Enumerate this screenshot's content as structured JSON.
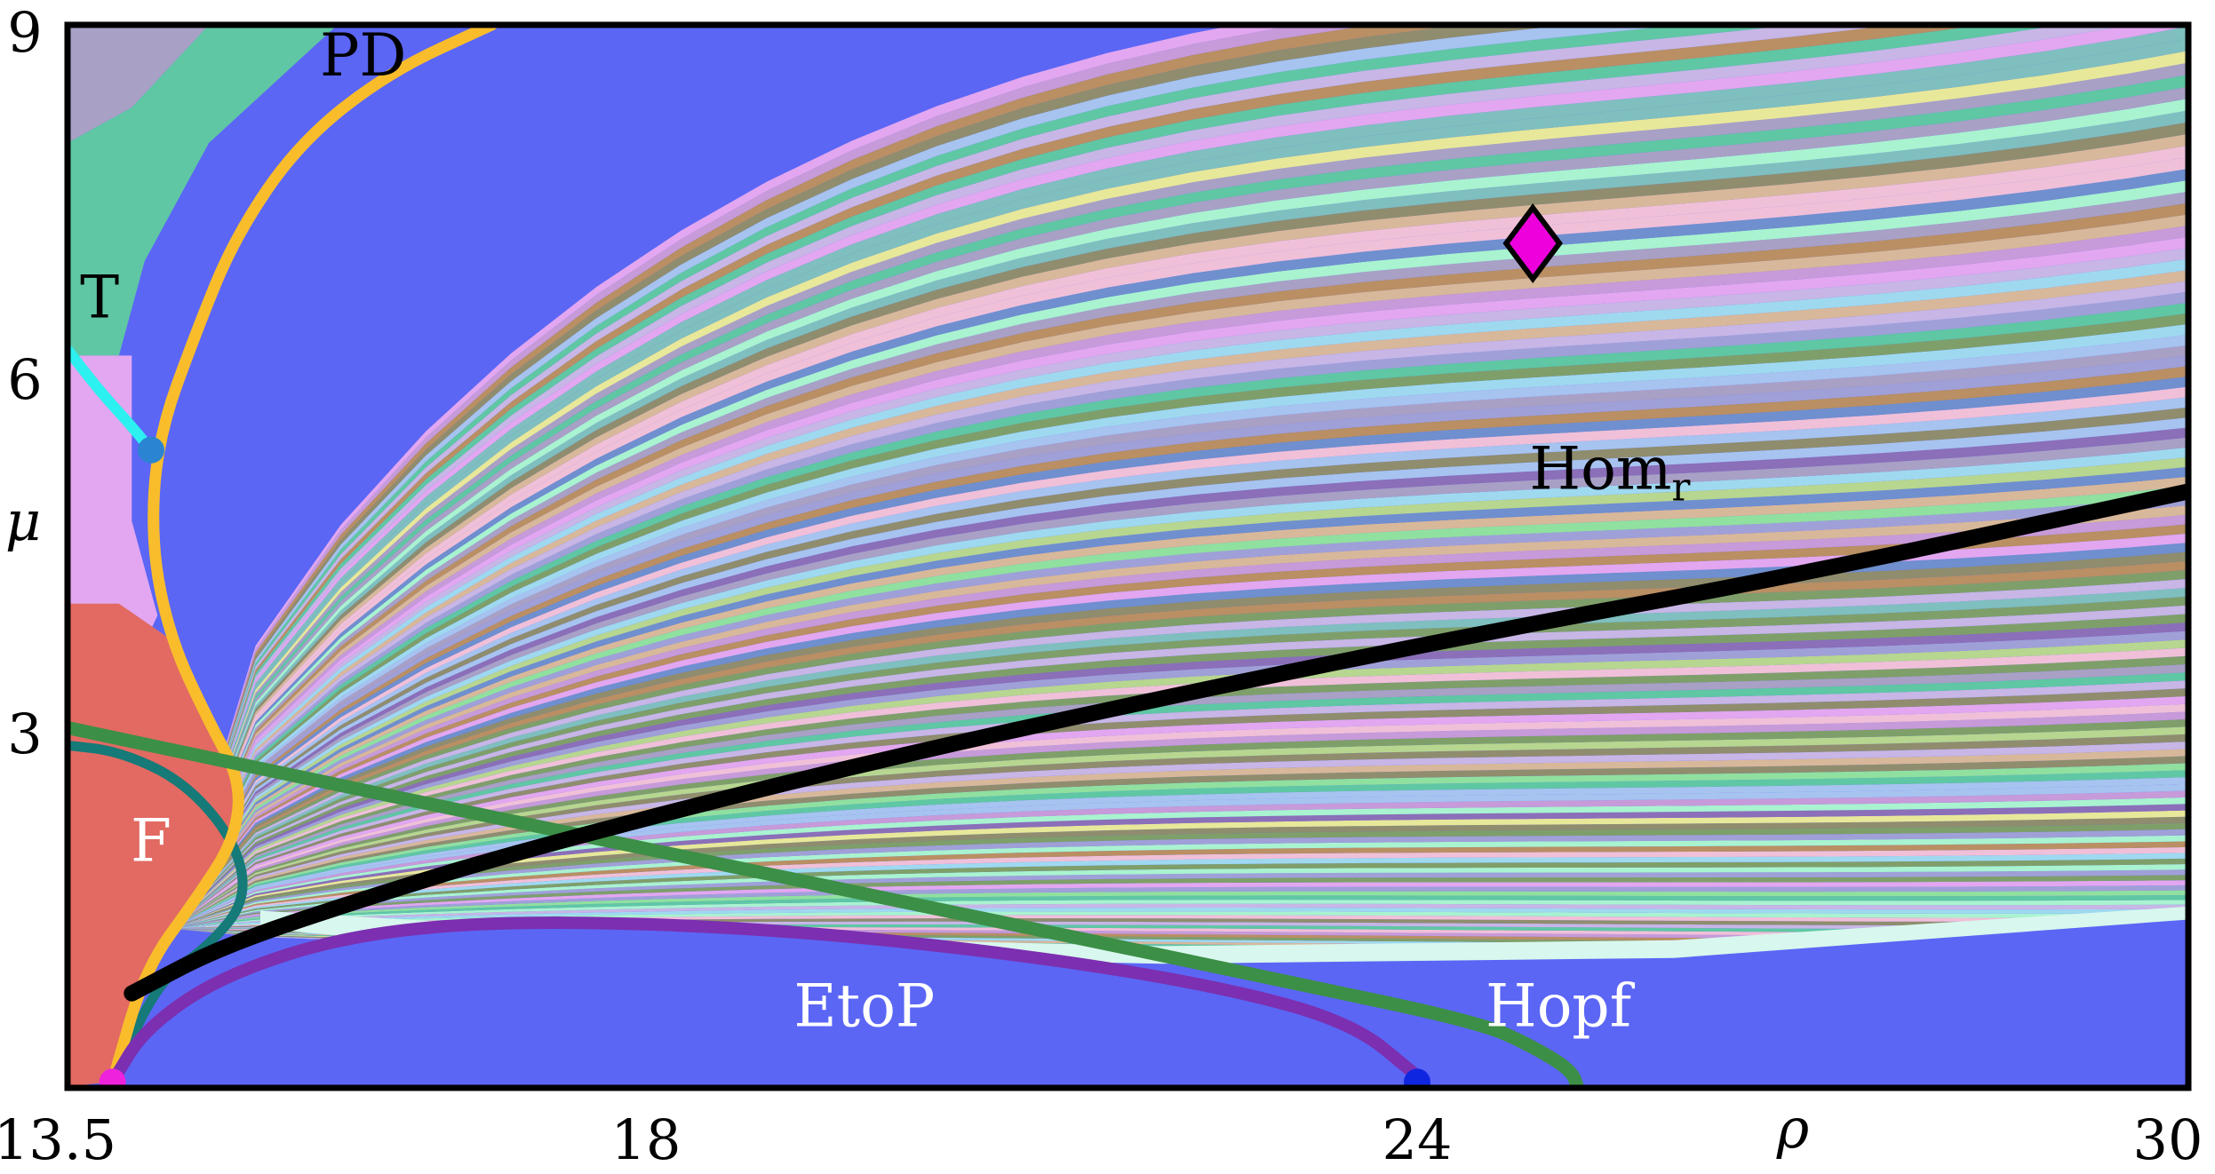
{
  "chart_data": {
    "type": "heatmap",
    "title": "",
    "xlabel": "ρ",
    "ylabel": "μ",
    "xlim": [
      13.5,
      30
    ],
    "ylim": [
      0,
      9
    ],
    "x_ticks": [
      "13.5",
      "18",
      "24",
      "30"
    ],
    "y_ticks": [
      "3",
      "6",
      "9"
    ],
    "x_tick_values": [
      13.5,
      18,
      24,
      30
    ],
    "y_tick_values": [
      3,
      6,
      9
    ],
    "background": {
      "description_free": true,
      "base_color": "#5b66f5",
      "palette": [
        "#a9a0c6",
        "#5fc7a4",
        "#e2a7f0",
        "#a9f3d0",
        "#8f8d6e",
        "#b98f63",
        "#8b6fb8",
        "#a7c3f0",
        "#7f9f6a",
        "#c7b6e6",
        "#e8e89a",
        "#9fd9f0",
        "#b7d690",
        "#f0c0d8",
        "#6f8fcf",
        "#c79ad9",
        "#7fbfbf",
        "#d8b89a",
        "#90e0a0",
        "#a0a0d8"
      ],
      "region_f_color": "#e26a62"
    },
    "curves": [
      {
        "name": "Hom_r",
        "color": "#000000",
        "points": [
          [
            14.0,
            0.8
          ],
          [
            14.7,
            1.2
          ],
          [
            15.8,
            1.6
          ],
          [
            17.0,
            2.0
          ],
          [
            19.5,
            2.7
          ],
          [
            22.0,
            3.3
          ],
          [
            24.5,
            3.85
          ],
          [
            27.0,
            4.35
          ],
          [
            30.0,
            5.05
          ]
        ]
      },
      {
        "name": "Hopf",
        "color": "#3c8f46",
        "points": [
          [
            13.5,
            3.05
          ],
          [
            15.0,
            2.7
          ],
          [
            17.0,
            2.25
          ],
          [
            19.0,
            1.8
          ],
          [
            21.0,
            1.35
          ],
          [
            23.0,
            0.9
          ],
          [
            24.5,
            0.55
          ],
          [
            24.9,
            0.35
          ],
          [
            25.2,
            0.15
          ],
          [
            25.25,
            0.0
          ]
        ]
      },
      {
        "name": "EtoP",
        "color": "#7c2fb0",
        "points": [
          [
            13.85,
            0.05
          ],
          [
            14.1,
            0.5
          ],
          [
            14.7,
            0.95
          ],
          [
            15.7,
            1.3
          ],
          [
            17.0,
            1.42
          ],
          [
            19.0,
            1.35
          ],
          [
            21.0,
            1.12
          ],
          [
            22.5,
            0.85
          ],
          [
            23.5,
            0.55
          ],
          [
            24.0,
            0.1
          ]
        ]
      },
      {
        "name": "PD",
        "color": "#f9bd2c",
        "points": [
          [
            16.8,
            9.0
          ],
          [
            16.0,
            8.6
          ],
          [
            15.3,
            8.0
          ],
          [
            14.8,
            7.2
          ],
          [
            14.5,
            6.4
          ],
          [
            14.2,
            5.5
          ],
          [
            14.15,
            4.6
          ],
          [
            14.3,
            3.8
          ],
          [
            14.6,
            3.1
          ],
          [
            14.85,
            2.6
          ],
          [
            14.8,
            2.1
          ],
          [
            14.5,
            1.6
          ],
          [
            14.1,
            1.0
          ],
          [
            13.85,
            0.05
          ]
        ]
      },
      {
        "name": "F",
        "color": "#157a78",
        "points": [
          [
            13.5,
            2.9
          ],
          [
            13.9,
            2.85
          ],
          [
            14.4,
            2.6
          ],
          [
            14.8,
            2.1
          ],
          [
            14.9,
            1.6
          ],
          [
            14.6,
            1.2
          ],
          [
            14.2,
            0.9
          ],
          [
            13.85,
            0.05
          ]
        ]
      },
      {
        "name": "T",
        "color": "#2df0f0",
        "points": [
          [
            13.5,
            6.25
          ],
          [
            13.75,
            5.9
          ],
          [
            14.0,
            5.6
          ],
          [
            14.15,
            5.4
          ]
        ]
      }
    ],
    "points": [
      {
        "name": "codim-two-point-T",
        "x": 14.15,
        "y": 5.4,
        "color": "#2b84d1"
      },
      {
        "name": "codim-two-point-origin",
        "x": 13.85,
        "y": 0.05,
        "color": "#ee22dd"
      },
      {
        "name": "codim-two-point-EtoP",
        "x": 24.0,
        "y": 0.05,
        "color": "#0f26e0"
      }
    ],
    "diamond_marker": {
      "x": 24.9,
      "y": 7.15,
      "color": "#ee00dd"
    },
    "annotations": [
      {
        "text": "PD",
        "x": 15.8,
        "y": 8.7,
        "color": "#000000"
      },
      {
        "text": "T",
        "x": 13.75,
        "y": 6.65,
        "color": "#000000"
      },
      {
        "text": "F",
        "x": 14.15,
        "y": 2.05,
        "color": "#ffffff"
      },
      {
        "text": "EtoP",
        "x": 19.7,
        "y": 0.65,
        "color": "#ffffff"
      },
      {
        "text": "Hopf",
        "x": 25.1,
        "y": 0.65,
        "color": "#ffffff"
      },
      {
        "text": "Hom",
        "subscript": "r",
        "x": 25.5,
        "y": 5.2,
        "color": "#000000"
      }
    ],
    "grid": false,
    "legend": "none"
  }
}
